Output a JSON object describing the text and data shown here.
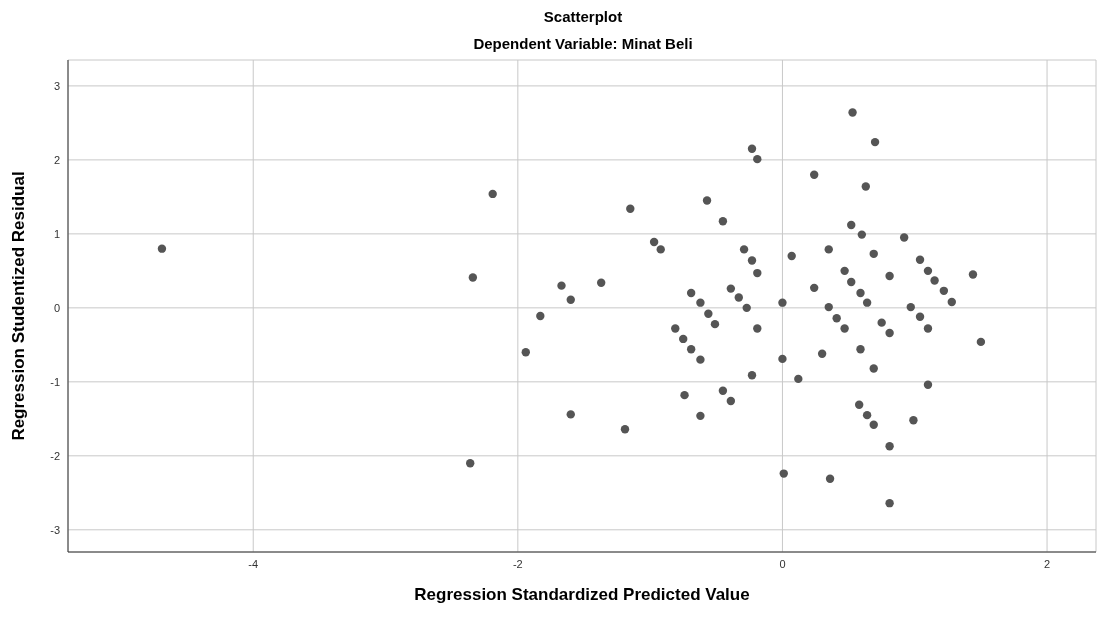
{
  "chart_data": {
    "type": "scatter",
    "title": "Scatterplot",
    "subtitle": "Dependent Variable: Minat Beli",
    "xlabel": "Regression Standardized Predicted Value",
    "ylabel": "Regression Studentized Residual",
    "xlim": [
      -5.4,
      2.37
    ],
    "ylim": [
      -3.3,
      3.35
    ],
    "xticks": [
      -4,
      -2,
      0,
      2
    ],
    "yticks": [
      -3,
      -2,
      -1,
      0,
      1,
      2,
      3
    ],
    "grid": true,
    "marker": "circle",
    "series": [
      {
        "color": "#555555",
        "x": [
          -4.69,
          -2.34,
          -2.19,
          -2.36,
          -1.94,
          -1.83,
          -1.67,
          -1.6,
          -1.6,
          -1.37,
          -1.19,
          -1.15,
          -0.97,
          -0.92,
          -0.57,
          -0.45,
          -0.69,
          -0.62,
          -0.56,
          -0.51,
          -0.39,
          -0.33,
          -0.27,
          -0.29,
          -0.23,
          -0.19,
          -0.81,
          -0.75,
          -0.69,
          -0.62,
          -0.23,
          -0.74,
          -0.45,
          -0.39,
          -0.62,
          -0.23,
          -0.19,
          -0.19,
          0.53,
          0.7,
          0.24,
          0.63,
          0.52,
          0.6,
          0.92,
          0.07,
          0.35,
          0.69,
          1.04,
          1.1,
          1.15,
          1.22,
          1.28,
          1.44,
          0.47,
          0.52,
          0.59,
          0.64,
          0.81,
          0.24,
          0.0,
          0.35,
          0.41,
          0.47,
          0.97,
          1.04,
          1.1,
          0.75,
          0.81,
          1.5,
          0.59,
          0.3,
          0.0,
          0.69,
          0.12,
          1.1,
          0.58,
          0.64,
          0.69,
          0.99,
          0.81,
          0.01,
          0.36,
          0.81
        ],
        "values": [
          0.8,
          0.41,
          1.54,
          -2.1,
          -0.6,
          -0.11,
          0.3,
          0.11,
          -1.44,
          0.34,
          -1.64,
          1.34,
          0.89,
          0.79,
          1.45,
          1.17,
          0.2,
          0.07,
          -0.08,
          -0.22,
          0.26,
          0.14,
          0.0,
          0.79,
          0.64,
          0.47,
          -0.28,
          -0.42,
          -0.56,
          -0.7,
          -0.91,
          -1.18,
          -1.12,
          -1.26,
          -1.46,
          2.15,
          2.01,
          -0.28,
          2.64,
          2.24,
          1.8,
          1.64,
          1.12,
          0.99,
          0.95,
          0.7,
          0.79,
          0.73,
          0.65,
          0.5,
          0.37,
          0.23,
          0.08,
          0.45,
          0.5,
          0.35,
          0.2,
          0.07,
          0.43,
          0.27,
          0.07,
          0.01,
          -0.14,
          -0.28,
          0.01,
          -0.12,
          -0.28,
          -0.2,
          -0.34,
          -0.46,
          -0.56,
          -0.62,
          -0.69,
          -0.82,
          -0.96,
          -1.04,
          -1.31,
          -1.45,
          -1.58,
          -1.52,
          -1.87,
          -2.24,
          -2.31,
          -2.64
        ]
      }
    ]
  }
}
